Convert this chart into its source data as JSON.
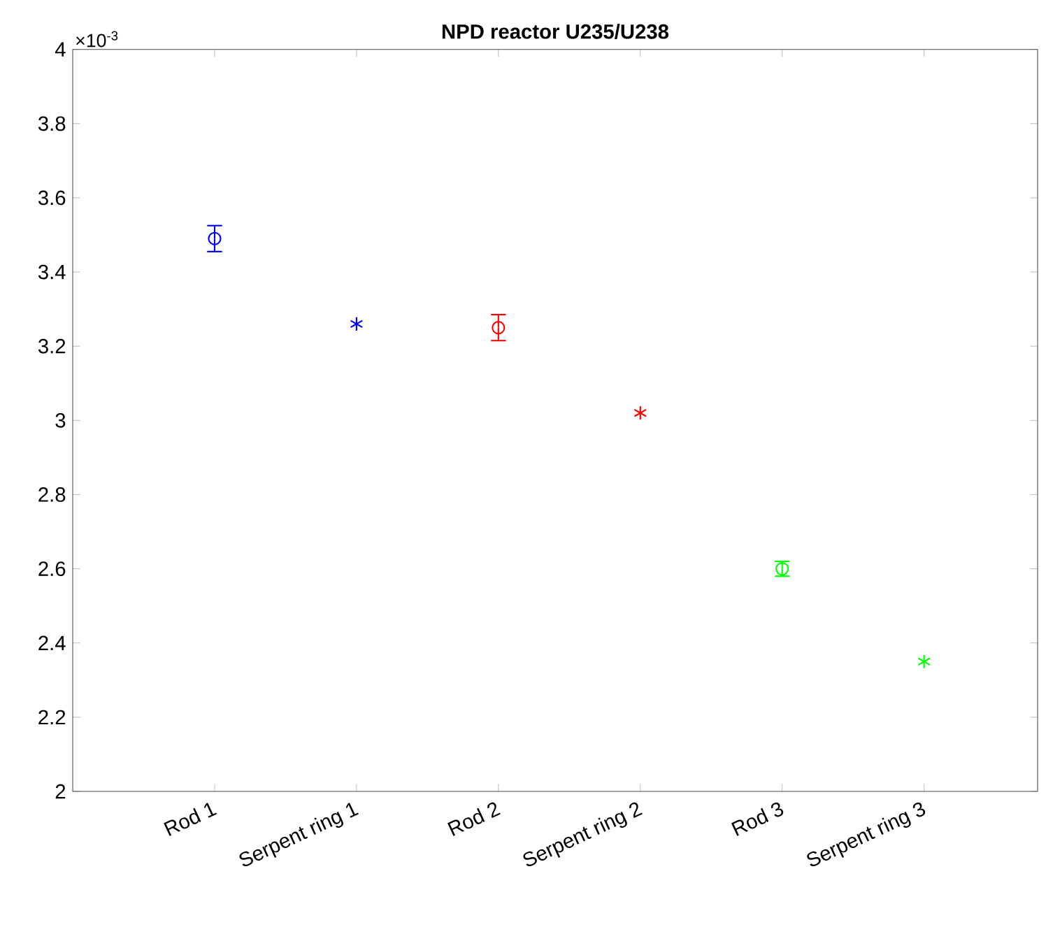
{
  "chart_data": {
    "type": "scatter",
    "title": "NPD reactor U235/U238",
    "categories": [
      "Rod 1",
      "Serpent ring 1",
      "Rod 2",
      "Serpent ring 2",
      "Rod 3",
      "Serpent ring 3"
    ],
    "series": [
      {
        "color": "#0000ff",
        "marker": "circle",
        "values": [
          3.49,
          null,
          null,
          null,
          null,
          null
        ],
        "errors": [
          0.035,
          null,
          null,
          null,
          null,
          null
        ]
      },
      {
        "color": "#0000ff",
        "marker": "cross",
        "values": [
          null,
          3.26,
          null,
          null,
          null,
          null
        ]
      },
      {
        "color": "#ff0000",
        "marker": "circle",
        "values": [
          null,
          null,
          3.25,
          null,
          null,
          null
        ],
        "errors": [
          null,
          null,
          0.035,
          null,
          null,
          null
        ]
      },
      {
        "color": "#ff0000",
        "marker": "cross",
        "values": [
          null,
          null,
          null,
          3.02,
          null,
          null
        ]
      },
      {
        "color": "#00ff00",
        "marker": "circle",
        "values": [
          null,
          null,
          null,
          null,
          2.6,
          null
        ],
        "errors": [
          null,
          null,
          null,
          null,
          0.02,
          null
        ]
      },
      {
        "color": "#00ff00",
        "marker": "cross",
        "values": [
          null,
          null,
          null,
          null,
          null,
          2.35
        ]
      }
    ],
    "ylim": [
      2,
      4
    ],
    "yticks": [
      2,
      2.2,
      2.4,
      2.6,
      2.8,
      3,
      3.2,
      3.4,
      3.6,
      3.8,
      4
    ],
    "annotations": [
      "×10$^{-3}$"
    ],
    "grid": false
  }
}
